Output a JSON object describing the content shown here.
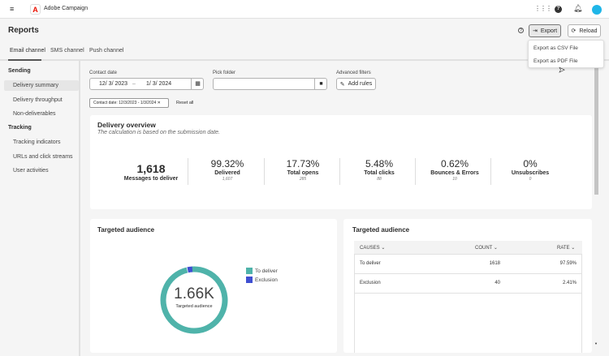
{
  "app": {
    "title": "Adobe Campaign"
  },
  "header": {
    "title": "Reports",
    "export": "Export",
    "reload": "Reload"
  },
  "export_menu": [
    "Export as CSV File",
    "Export as PDF File"
  ],
  "tabs": [
    "Email channel",
    "SMS channel",
    "Push channel"
  ],
  "sidebar": {
    "sections": [
      {
        "label": "Sending",
        "items": [
          "Delivery summary",
          "Delivery throughput",
          "Non-deliverables"
        ]
      },
      {
        "label": "Tracking",
        "items": [
          "Tracking indicators",
          "URLs and click streams",
          "User activities"
        ]
      }
    ]
  },
  "filters": {
    "contact_date_label": "Contact date",
    "date_from": "12/  3/ 2023",
    "date_sep": "–",
    "date_to": "1/  3/ 2024",
    "pick_folder_label": "Pick folder",
    "pick_folder_value": "",
    "advanced_label": "Advanced filters",
    "add_rules": "Add rules",
    "chip": "Contact date: 12/3/2023 - 1/3/2024",
    "reset_all": "Reset all"
  },
  "overview": {
    "title": "Delivery overview",
    "subtitle": "The calculation is based on the submission date.",
    "metrics": [
      {
        "value": "1,618",
        "label": "Messages to deliver",
        "sub": ""
      },
      {
        "value": "99.32%",
        "label": "Delivered",
        "sub": "1,607"
      },
      {
        "value": "17.73%",
        "label": "Total opens",
        "sub": "285"
      },
      {
        "value": "5.48%",
        "label": "Total clicks",
        "sub": "88"
      },
      {
        "value": "0.62%",
        "label": "Bounces & Errors",
        "sub": "10"
      },
      {
        "value": "0%",
        "label": "Unsubscribes",
        "sub": "0"
      }
    ]
  },
  "audience_chart": {
    "title": "Targeted audience",
    "center_value": "1.66K",
    "center_label": "Targeted audience"
  },
  "chart_data": {
    "type": "pie",
    "donut": true,
    "categories": [
      "To deliver",
      "Exclusion"
    ],
    "values": [
      1618,
      40
    ],
    "colors": [
      "#4fb3aa",
      "#3f4fd1"
    ],
    "legend": "right"
  },
  "audience_table": {
    "title": "Targeted audience",
    "columns": [
      "CAUSES",
      "COUNT",
      "RATE"
    ],
    "rows": [
      [
        "To deliver",
        "1618",
        "97.59%"
      ],
      [
        "Exclusion",
        "40",
        "2.41%"
      ]
    ]
  },
  "colors": {
    "accent": "#eb1000",
    "primary": "#4fb3aa",
    "secondary": "#3f4fd1",
    "avatar": "#1fb6e8"
  }
}
